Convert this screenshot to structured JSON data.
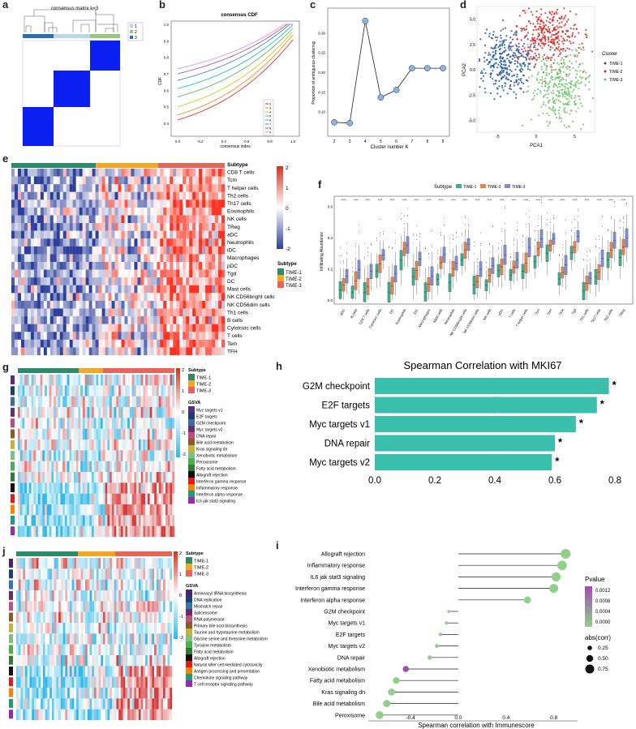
{
  "panel_labels": {
    "a": "a",
    "b": "b",
    "c": "c",
    "d": "d",
    "e": "e",
    "f": "f",
    "g": "g",
    "h": "h",
    "i": "i",
    "j": "j"
  },
  "colors": {
    "time1": "#2e8b6a",
    "time2": "#f5a623",
    "time3": "#e8645a",
    "heat_high": "#d7301f",
    "heat_low": "#2c3e9a",
    "teal": "#3bbfad",
    "blue": "#1f4bd8"
  },
  "panel_a": {
    "title": "consensus matrix k=3",
    "legend": [
      "1",
      "2",
      "3"
    ]
  },
  "panel_b": {
    "title": "consensus CDF",
    "xlabel": "consensus index",
    "ylabel": "CDF",
    "x_ticks": [
      "0.0",
      "0.2",
      "0.4",
      "0.6",
      "0.8",
      "1.0"
    ],
    "y_ticks": [
      "0.4",
      "0.5",
      "0.6",
      "0.7",
      "0.8",
      "0.9",
      "1.0"
    ],
    "legend": [
      "2",
      "3",
      "4",
      "5",
      "6",
      "7",
      "8",
      "9"
    ],
    "legend_colors": [
      "#e41a1c",
      "#ff7f00",
      "#c9c900",
      "#4daf4a",
      "#00bcd4",
      "#377eb8",
      "#984ea3",
      "#f781bf"
    ]
  },
  "chart_data": [
    {
      "type": "line",
      "panel": "c",
      "title": "",
      "xlabel": "Cluster number K",
      "ylabel": "Proportion of ambiguous clustering",
      "x": [
        2,
        3,
        4,
        5,
        6,
        7,
        8,
        9
      ],
      "y": [
        0.073,
        0.071,
        0.33,
        0.136,
        0.155,
        0.21,
        0.21,
        0.21
      ],
      "xlim": [
        2,
        9
      ],
      "ylim": [
        0.05,
        0.35
      ],
      "x_ticks": [
        "2",
        "3",
        "4",
        "5",
        "6",
        "7",
        "8",
        "9"
      ],
      "y_ticks": [
        "0.10",
        "0.15",
        "0.20",
        "0.25",
        "0.30"
      ]
    },
    {
      "type": "bar",
      "panel": "h",
      "title": "Spearman Correlation with MKI67",
      "categories": [
        "G2M checkpoint",
        "E2F targets",
        "Myc targets v1",
        "DNA repair",
        "Myc targets v2"
      ],
      "values": [
        0.78,
        0.74,
        0.67,
        0.6,
        0.59
      ],
      "annotations": [
        "*",
        "*",
        "*",
        "*",
        "*"
      ],
      "xlim": [
        0,
        0.8
      ],
      "x_ticks": [
        "0.0",
        "0.2",
        "0.4",
        "0.6",
        "0.8"
      ]
    },
    {
      "type": "scatter",
      "panel": "i",
      "xlabel": "Spearman correlation with Immunescore",
      "categories": [
        "Allograft rejection",
        "Inflammatory response",
        "IL6 jak stat3 signaling",
        "Interferon gamma response",
        "Interferon alpha response",
        "G2M checkpoint",
        "Myc targets v1",
        "E2F targets",
        "Myc targets v2",
        "DNA repair",
        "Xenobiotic metabolism",
        "Fatty acid metabolism",
        "Kras signaling dn",
        "Bile acid metabolism",
        "Peroxisome"
      ],
      "values": [
        0.9,
        0.87,
        0.82,
        0.8,
        0.58,
        -0.08,
        -0.1,
        -0.15,
        -0.18,
        -0.24,
        -0.44,
        -0.52,
        -0.56,
        -0.6,
        -0.66
      ],
      "sizes": [
        0.9,
        0.87,
        0.82,
        0.8,
        0.58,
        0.08,
        0.1,
        0.15,
        0.18,
        0.24,
        0.44,
        0.52,
        0.56,
        0.6,
        0.66
      ],
      "colors": [
        "#8fd18a",
        "#8fd18a",
        "#8fd18a",
        "#8fd18a",
        "#8fd18a",
        "#8fd18a",
        "#8fd18a",
        "#8fd18a",
        "#8fd18a",
        "#8fd18a",
        "#a24bb0",
        "#8fd18a",
        "#8fd18a",
        "#8fd18a",
        "#8fd18a"
      ],
      "xlim": [
        -0.7,
        1.0
      ],
      "x_ticks": [
        "-0.4",
        "0.0",
        "0.4",
        "0.8"
      ],
      "pvalue_title": "Pvalue",
      "pvalue_ticks": [
        "0.0012",
        "0.0008",
        "0.0004",
        "0.0000"
      ],
      "size_title": "abs(corr)",
      "size_ticks": [
        "0.25",
        "0.50",
        "0.75"
      ]
    }
  ],
  "panel_d": {
    "xlabel": "PCA1",
    "ylabel": "PCA2",
    "legend_title": "Cluster",
    "legend": [
      "TIME-1",
      "TIME-2",
      "TIME-3"
    ],
    "x_ticks": [
      "-5",
      "0",
      "5"
    ],
    "y_ticks": [
      "5.0",
      "2.5",
      "0.0",
      "-2.5",
      "-5.0"
    ]
  },
  "panel_e": {
    "rows": [
      "Subtype",
      "CD8 T cells",
      "Tcm",
      "T helper cells",
      "Th2 cells",
      "Th17 cells",
      "Eosinophils",
      "NK cells",
      "TReg",
      "aDC",
      "Neutrophils",
      "iDC",
      "Macrophages",
      "pDC",
      "Tgd",
      "DC",
      "Mast cells",
      "NK CD56bright cells",
      "NK CD56dim cells",
      "Th1 cells",
      "B cells",
      "Cytotoxic cells",
      "T cells",
      "Tem",
      "TFH"
    ],
    "scale": [
      "2",
      "1",
      "0",
      "-1",
      "-2"
    ],
    "legend_title": "Subtype",
    "legend": [
      "TIME-1",
      "TIME-2",
      "TIME-3"
    ]
  },
  "panel_f": {
    "legend_title": "Subtype",
    "legend": [
      "TIME-1",
      "TIME-2",
      "TIME-3"
    ],
    "ylabel": "Infiltrating Abundance",
    "y_ticks": [
      "0.6",
      "0.4",
      "0.2",
      "0.0"
    ],
    "sig": "****",
    "categories": [
      "aDC",
      "B cells",
      "CD8 T cells",
      "Cytotoxic cells",
      "DC",
      "Eosinophils",
      "iDC",
      "Macrophages",
      "Mast cells",
      "Neutrophils",
      "NK CD56bright cells",
      "NK CD56dim cells",
      "NK cells",
      "pDC",
      "T cells",
      "T helper cells",
      "Tcm",
      "Tem",
      "TFH",
      "Tgd",
      "Th1 cells",
      "Th17 cells",
      "Th2 cells",
      "TReg"
    ]
  },
  "panel_g": {
    "subtype_title": "Subtype",
    "subtype": [
      "TIME-1",
      "TIME-2",
      "TIME-3"
    ],
    "gsva_title": "GSVA",
    "gsva": [
      "Myc targets v1",
      "E2F targets",
      "G2M checkpoint",
      "Myc targets v2",
      "DNA repair",
      "Bile acid metabolism",
      "Kras signaling dn",
      "Xenobiotic metabolism",
      "Peroxisome",
      "Fatty acid metabolism",
      "Allograft rejection",
      "Interferon gamma response",
      "Inflammatory response",
      "Interferon alpha response",
      "IL6 jak stat3 signaling"
    ],
    "gsva_colors": [
      "#5b2a86",
      "#1f3b73",
      "#3a6ea5",
      "#6a2c70",
      "#c04a7a",
      "#8b5a2b",
      "#c9b037",
      "#7fbf7f",
      "#4caf50",
      "#2e7d32",
      "#111111",
      "#e31a1c",
      "#ff7f00",
      "#1b9e77",
      "#9c27b0"
    ],
    "scale": [
      "2",
      "1",
      "0",
      "-1",
      "-2"
    ]
  },
  "panel_j": {
    "subtype_title": "Subtype",
    "subtype": [
      "TIME-1",
      "TIME-2",
      "TIME-3"
    ],
    "gsva_title": "GSVA",
    "gsva": [
      "Aminoacyl tRNA biosynthesis",
      "DNA replication",
      "Mismatch repair",
      "Spliceosome",
      "RNA polymerase",
      "Primary bile acid biosynthesis",
      "Taurine and hypotaurine metabolism",
      "Glycine serine and threonine metabolism",
      "Tyrosine metabolism",
      "Fatty acid metabolism",
      "Allograft rejection",
      "Natural killer cell mediated cytotoxicity",
      "Antigen processing and presentation",
      "Chemokine signaling pathway",
      "T cell receptor signaling pathway"
    ],
    "gsva_colors": [
      "#4a2377",
      "#1d3f7a",
      "#2f78b5",
      "#6b2b6b",
      "#c0507e",
      "#8b5a2b",
      "#c9b037",
      "#7fbf7f",
      "#4caf50",
      "#2e7d32",
      "#111111",
      "#e31a1c",
      "#ff7f00",
      "#1b9e77",
      "#9c27b0"
    ],
    "scale": [
      "2",
      "1",
      "0",
      "-1",
      "-2"
    ]
  }
}
